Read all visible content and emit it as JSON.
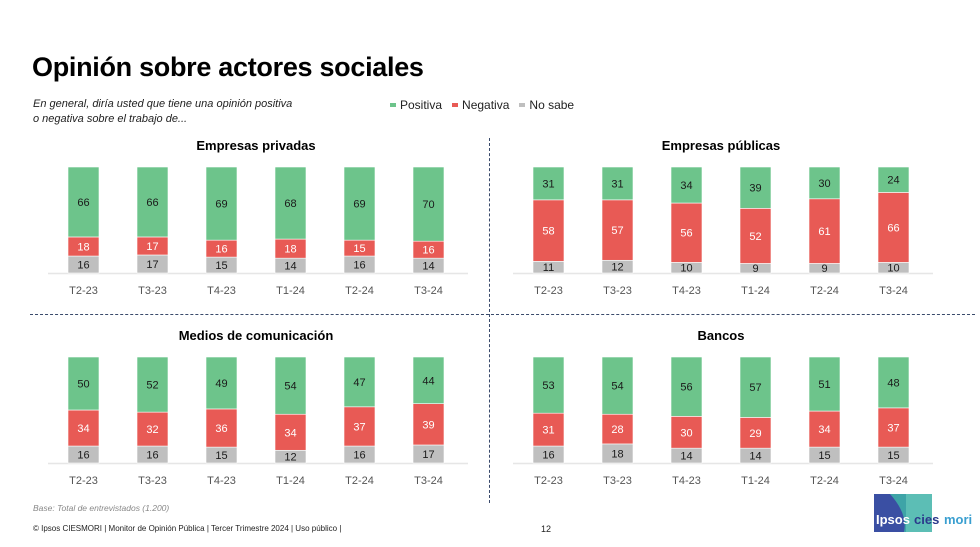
{
  "header": {
    "title": "Opinión sobre actores sociales",
    "question": "En general, diría usted que tiene una opinión positiva o negativa sobre el trabajo de..."
  },
  "legend": [
    {
      "label": "Positiva",
      "color": "#6dc48b"
    },
    {
      "label": "Negativa",
      "color": "#e85a55"
    },
    {
      "label": "No sabe",
      "color": "#bfbfbf"
    }
  ],
  "chart_data": [
    {
      "type": "bar",
      "stacked": true,
      "title": "Empresas privadas",
      "categories": [
        "T2-23",
        "T3-23",
        "T4-23",
        "T1-24",
        "T2-24",
        "T3-24"
      ],
      "series": [
        {
          "name": "No sabe",
          "values": [
            16,
            17,
            15,
            14,
            16,
            14
          ]
        },
        {
          "name": "Negativa",
          "values": [
            18,
            17,
            16,
            18,
            15,
            16
          ]
        },
        {
          "name": "Positiva",
          "values": [
            66,
            66,
            69,
            68,
            69,
            70
          ]
        }
      ],
      "ylim": [
        0,
        100
      ]
    },
    {
      "type": "bar",
      "stacked": true,
      "title": "Empresas públicas",
      "categories": [
        "T2-23",
        "T3-23",
        "T4-23",
        "T1-24",
        "T2-24",
        "T3-24"
      ],
      "series": [
        {
          "name": "No sabe",
          "values": [
            11,
            12,
            10,
            9,
            9,
            10
          ]
        },
        {
          "name": "Negativa",
          "values": [
            58,
            57,
            56,
            52,
            61,
            66
          ]
        },
        {
          "name": "Positiva",
          "values": [
            31,
            31,
            34,
            39,
            30,
            24
          ]
        }
      ],
      "ylim": [
        0,
        100
      ]
    },
    {
      "type": "bar",
      "stacked": true,
      "title": "Medios de comunicación",
      "categories": [
        "T2-23",
        "T3-23",
        "T4-23",
        "T1-24",
        "T2-24",
        "T3-24"
      ],
      "series": [
        {
          "name": "No sabe",
          "values": [
            16,
            16,
            15,
            12,
            16,
            17
          ]
        },
        {
          "name": "Negativa",
          "values": [
            34,
            32,
            36,
            34,
            37,
            39
          ]
        },
        {
          "name": "Positiva",
          "values": [
            50,
            52,
            49,
            54,
            47,
            44
          ]
        }
      ],
      "ylim": [
        0,
        100
      ]
    },
    {
      "type": "bar",
      "stacked": true,
      "title": "Bancos",
      "categories": [
        "T2-23",
        "T3-23",
        "T4-23",
        "T1-24",
        "T2-24",
        "T3-24"
      ],
      "series": [
        {
          "name": "No sabe",
          "values": [
            16,
            18,
            14,
            14,
            15,
            15
          ]
        },
        {
          "name": "Negativa",
          "values": [
            31,
            28,
            30,
            29,
            34,
            37
          ]
        },
        {
          "name": "Positiva",
          "values": [
            53,
            54,
            56,
            57,
            51,
            48
          ]
        }
      ],
      "ylim": [
        0,
        100
      ]
    }
  ],
  "footer": {
    "base": "Base: Total de entrevistados (1.200)",
    "credits": "© Ipsos CIESMORI | Monitor de Opinión Pública | Tercer Trimestre 2024 | Uso público |",
    "page": "12",
    "logo_left": "Ipsos",
    "logo_right_a": "cies",
    "logo_right_b": "mori"
  }
}
